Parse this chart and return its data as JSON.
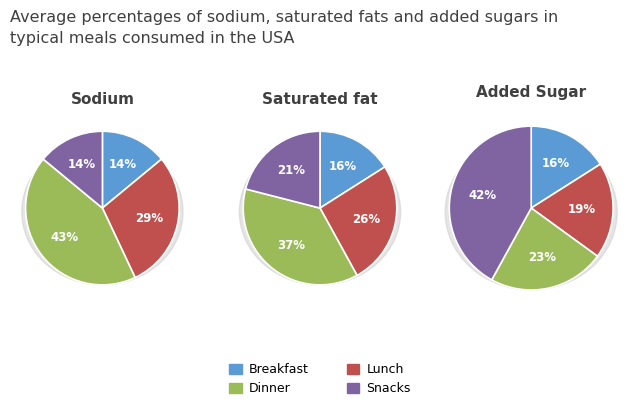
{
  "title": "Average percentages of sodium, saturated fats and added sugars in\ntypical meals consumed in the USA",
  "title_fontsize": 11.5,
  "charts": [
    {
      "title": "Sodium",
      "values": [
        14,
        29,
        43,
        14
      ],
      "labels": [
        "14%",
        "29%",
        "43%",
        "14%"
      ],
      "startangle": 90
    },
    {
      "title": "Saturated fat",
      "values": [
        16,
        26,
        37,
        21
      ],
      "labels": [
        "16%",
        "26%",
        "37%",
        "21%"
      ],
      "startangle": 90
    },
    {
      "title": "Added Sugar",
      "values": [
        16,
        19,
        23,
        42
      ],
      "labels": [
        "16%",
        "19%",
        "23%",
        "42%"
      ],
      "startangle": 90
    }
  ],
  "colors": [
    "#5B9BD5",
    "#C0504D",
    "#9BBB59",
    "#8064A2"
  ],
  "legend_items": [
    [
      "Breakfast",
      "#5B9BD5"
    ],
    [
      "Dinner",
      "#9BBB59"
    ],
    [
      "Lunch",
      "#C0504D"
    ],
    [
      "Snacks",
      "#8064A2"
    ]
  ],
  "background_color": "#FFFFFF",
  "label_fontsize": 8.5,
  "title_color": "#404040"
}
